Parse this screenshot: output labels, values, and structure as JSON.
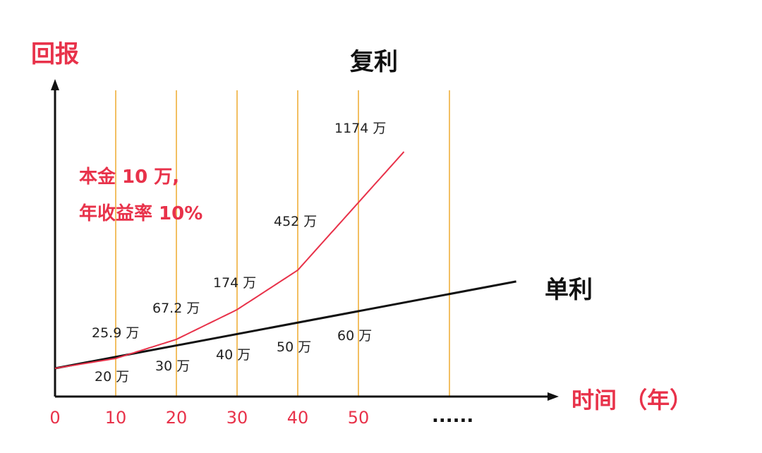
{
  "colors": {
    "accent": "#e8324a",
    "axis": "#111111",
    "gridline": "#f2bf62",
    "compound": "#e8324a",
    "simple": "#111111"
  },
  "chart_data": {
    "type": "line",
    "title": "复利",
    "ylabel": "回报",
    "xlabel": "时间 （年）",
    "x_ticks": [
      "0",
      "10",
      "20",
      "30",
      "40",
      "50"
    ],
    "x_ellipsis": "......",
    "gridlines_x": [
      10,
      20,
      30,
      40,
      50,
      65
    ],
    "xlim": [
      0,
      82
    ],
    "annotation": [
      "本金 10 万,",
      "年收益率 10%"
    ],
    "series": [
      {
        "name": "复利",
        "points": [
          [
            0,
            10
          ],
          [
            10,
            25.9
          ],
          [
            20,
            67.2
          ],
          [
            30,
            174
          ],
          [
            40,
            452
          ],
          [
            50,
            1174
          ]
        ],
        "labels": [
          {
            "x": 10,
            "text": "25.9 万"
          },
          {
            "x": 20,
            "text": "67.2 万"
          },
          {
            "x": 30,
            "text": "174 万"
          },
          {
            "x": 40,
            "text": "452 万"
          },
          {
            "x": 50,
            "text": "1174 万"
          }
        ]
      },
      {
        "name": "单利",
        "points": [
          [
            0,
            10
          ],
          [
            10,
            20
          ],
          [
            20,
            30
          ],
          [
            30,
            40
          ],
          [
            40,
            50
          ],
          [
            50,
            60
          ]
        ],
        "labels": [
          {
            "x": 10,
            "text": "20 万"
          },
          {
            "x": 20,
            "text": "30 万"
          },
          {
            "x": 30,
            "text": "40 万"
          },
          {
            "x": 40,
            "text": "50 万"
          },
          {
            "x": 50,
            "text": "60 万"
          }
        ]
      }
    ]
  }
}
